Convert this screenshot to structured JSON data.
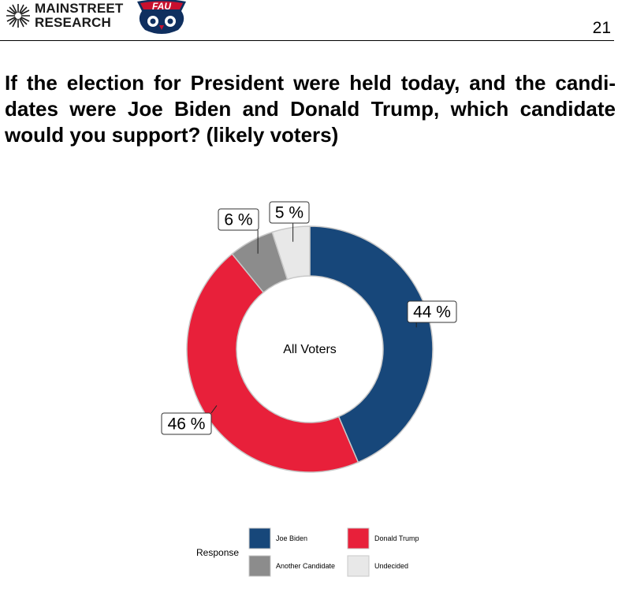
{
  "header": {
    "brand_line1": "MAINSTREET",
    "brand_line2": "RESEARCH",
    "page_number": "21",
    "partner_logo": "fau-owls-logo"
  },
  "question": "If the election for President were held today, and the candi-dates were Joe Biden and Donald Trump, which candidate would you support? (likely voters)",
  "chart_data": {
    "type": "pie",
    "style": "donut",
    "center_label": "All Voters",
    "legend_title": "Response",
    "legend_position": "bottom",
    "slices": [
      {
        "name": "Joe Biden",
        "value": 44,
        "label": "44 %",
        "color": "#17477a"
      },
      {
        "name": "Donald Trump",
        "value": 46,
        "label": "46 %",
        "color": "#e8203a"
      },
      {
        "name": "Another Candidate",
        "value": 6,
        "label": "6 %",
        "color": "#8c8c8c"
      },
      {
        "name": "Undecided",
        "value": 5,
        "label": "5 %",
        "color": "#e8e8e8"
      }
    ]
  }
}
